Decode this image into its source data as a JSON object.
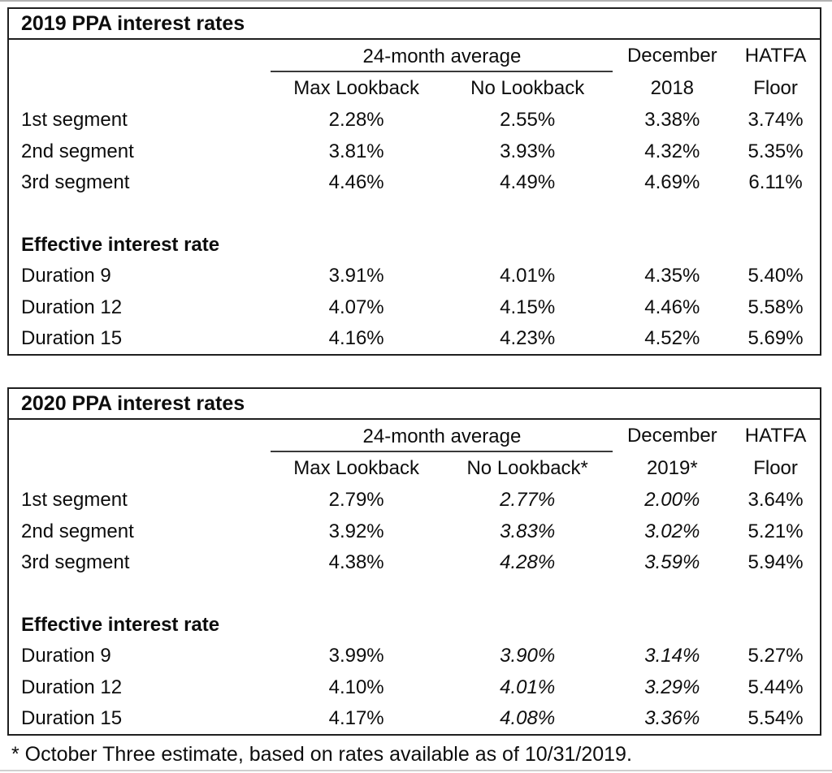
{
  "footnote": "* October Three estimate, based on rates available as of 10/31/2019.",
  "tables": [
    {
      "title": "2019 PPA interest rates",
      "headers": {
        "group": "24-month average",
        "sub_max": "Max Lookback",
        "sub_no": "No Lookback",
        "dec_top": "December",
        "dec_bottom": "2018",
        "hatfa_top": "HATFA",
        "hatfa_bottom": "Floor"
      },
      "segment_rows": [
        {
          "label": "1st segment",
          "values": [
            "2.28%",
            "2.55%",
            "3.38%",
            "3.74%"
          ]
        },
        {
          "label": "2nd segment",
          "values": [
            "3.81%",
            "3.93%",
            "4.32%",
            "5.35%"
          ]
        },
        {
          "label": "3rd segment",
          "values": [
            "4.46%",
            "4.49%",
            "4.69%",
            "6.11%"
          ]
        }
      ],
      "section_label": "Effective interest rate",
      "duration_rows": [
        {
          "label": "Duration 9",
          "values": [
            "3.91%",
            "4.01%",
            "4.35%",
            "5.40%"
          ]
        },
        {
          "label": "Duration 12",
          "values": [
            "4.07%",
            "4.15%",
            "4.46%",
            "5.58%"
          ]
        },
        {
          "label": "Duration 15",
          "values": [
            "4.16%",
            "4.23%",
            "4.52%",
            "5.69%"
          ]
        }
      ]
    },
    {
      "title": "2020 PPA interest rates",
      "headers": {
        "group": "24-month average",
        "sub_max": "Max Lookback",
        "sub_no": "No Lookback*",
        "dec_top": "December",
        "dec_bottom": "2019*",
        "hatfa_top": "HATFA",
        "hatfa_bottom": "Floor"
      },
      "segment_rows": [
        {
          "label": "1st segment",
          "values": [
            "2.79%",
            "2.77%",
            "2.00%",
            "3.64%"
          ]
        },
        {
          "label": "2nd segment",
          "values": [
            "3.92%",
            "3.83%",
            "3.02%",
            "5.21%"
          ]
        },
        {
          "label": "3rd segment",
          "values": [
            "4.38%",
            "4.28%",
            "3.59%",
            "5.94%"
          ]
        }
      ],
      "section_label": "Effective interest rate",
      "duration_rows": [
        {
          "label": "Duration 9",
          "values": [
            "3.99%",
            "3.90%",
            "3.14%",
            "5.27%"
          ]
        },
        {
          "label": "Duration 12",
          "values": [
            "4.10%",
            "4.01%",
            "3.29%",
            "5.44%"
          ]
        },
        {
          "label": "Duration 15",
          "values": [
            "4.17%",
            "4.08%",
            "3.36%",
            "5.54%"
          ]
        }
      ]
    }
  ]
}
